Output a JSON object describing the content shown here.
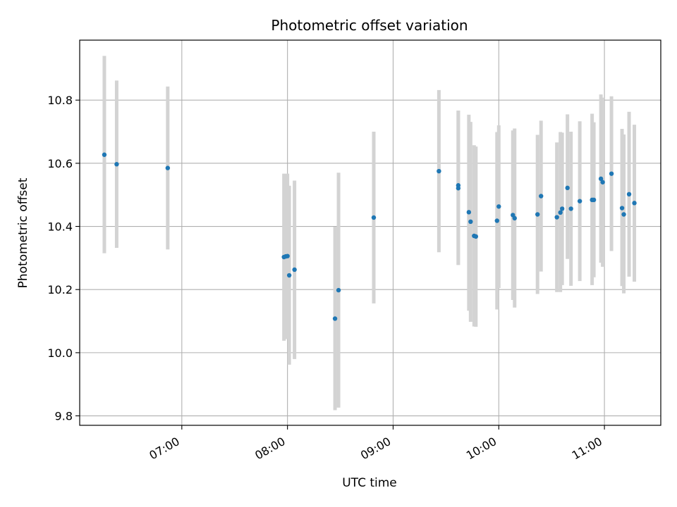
{
  "chart_data": {
    "type": "scatter",
    "title": "Photometric offset variation",
    "xlabel": "UTC time",
    "ylabel": "Photometric offset",
    "xlim": [
      "06:02",
      "11:32"
    ],
    "ylim": [
      9.77,
      10.99
    ],
    "x_ticks": [
      "07:00",
      "08:00",
      "09:00",
      "10:00",
      "11:00"
    ],
    "y_ticks": [
      "9.8",
      "10.0",
      "10.2",
      "10.4",
      "10.6",
      "10.8"
    ],
    "grid": true,
    "point_color": "#1f77b4",
    "errorbar_color": "#d3d3d3",
    "points": [
      {
        "t": "06:16",
        "y": 10.627,
        "lo": 10.315,
        "hi": 10.94
      },
      {
        "t": "06:23",
        "y": 10.597,
        "lo": 10.332,
        "hi": 10.862
      },
      {
        "t": "06:52",
        "y": 10.585,
        "lo": 10.327,
        "hi": 10.843
      },
      {
        "t": "07:58",
        "y": 10.303,
        "lo": 10.038,
        "hi": 10.567
      },
      {
        "t": "07:59",
        "y": 10.305,
        "lo": 10.043,
        "hi": 10.566
      },
      {
        "t": "08:00",
        "y": 10.306,
        "lo": 10.045,
        "hi": 10.567
      },
      {
        "t": "08:01",
        "y": 10.245,
        "lo": 9.962,
        "hi": 10.529
      },
      {
        "t": "08:04",
        "y": 10.263,
        "lo": 9.98,
        "hi": 10.545
      },
      {
        "t": "08:27",
        "y": 10.108,
        "lo": 9.818,
        "hi": 10.399
      },
      {
        "t": "08:29",
        "y": 10.198,
        "lo": 9.826,
        "hi": 10.57
      },
      {
        "t": "08:49",
        "y": 10.428,
        "lo": 10.156,
        "hi": 10.7
      },
      {
        "t": "09:26",
        "y": 10.575,
        "lo": 10.318,
        "hi": 10.832
      },
      {
        "t": "09:37",
        "y": 10.53,
        "lo": 10.278,
        "hi": 10.767
      },
      {
        "t": "09:37",
        "y": 10.521,
        "lo": 10.278,
        "hi": 10.767
      },
      {
        "t": "09:43",
        "y": 10.445,
        "lo": 10.133,
        "hi": 10.754
      },
      {
        "t": "09:44",
        "y": 10.415,
        "lo": 10.098,
        "hi": 10.731
      },
      {
        "t": "09:46",
        "y": 10.37,
        "lo": 10.083,
        "hi": 10.657
      },
      {
        "t": "09:47",
        "y": 10.368,
        "lo": 10.082,
        "hi": 10.653
      },
      {
        "t": "09:59",
        "y": 10.418,
        "lo": 10.137,
        "hi": 10.699
      },
      {
        "t": "10:00",
        "y": 10.463,
        "lo": 10.205,
        "hi": 10.72
      },
      {
        "t": "10:08",
        "y": 10.436,
        "lo": 10.167,
        "hi": 10.704
      },
      {
        "t": "10:09",
        "y": 10.426,
        "lo": 10.143,
        "hi": 10.71
      },
      {
        "t": "10:22",
        "y": 10.438,
        "lo": 10.186,
        "hi": 10.69
      },
      {
        "t": "10:24",
        "y": 10.496,
        "lo": 10.257,
        "hi": 10.735
      },
      {
        "t": "10:33",
        "y": 10.429,
        "lo": 10.192,
        "hi": 10.666
      },
      {
        "t": "10:35",
        "y": 10.444,
        "lo": 10.192,
        "hi": 10.699
      },
      {
        "t": "10:36",
        "y": 10.456,
        "lo": 10.214,
        "hi": 10.697
      },
      {
        "t": "10:39",
        "y": 10.522,
        "lo": 10.297,
        "hi": 10.755
      },
      {
        "t": "10:41",
        "y": 10.456,
        "lo": 10.212,
        "hi": 10.7
      },
      {
        "t": "10:46",
        "y": 10.48,
        "lo": 10.227,
        "hi": 10.733
      },
      {
        "t": "10:53",
        "y": 10.484,
        "lo": 10.214,
        "hi": 10.757
      },
      {
        "t": "10:54",
        "y": 10.484,
        "lo": 10.239,
        "hi": 10.73
      },
      {
        "t": "10:58",
        "y": 10.551,
        "lo": 10.285,
        "hi": 10.818
      },
      {
        "t": "10:59",
        "y": 10.54,
        "lo": 10.272,
        "hi": 10.808
      },
      {
        "t": "11:04",
        "y": 10.567,
        "lo": 10.322,
        "hi": 10.812
      },
      {
        "t": "11:10",
        "y": 10.458,
        "lo": 10.211,
        "hi": 10.709
      },
      {
        "t": "11:11",
        "y": 10.438,
        "lo": 10.188,
        "hi": 10.691
      },
      {
        "t": "11:14",
        "y": 10.502,
        "lo": 10.241,
        "hi": 10.763
      },
      {
        "t": "11:17",
        "y": 10.474,
        "lo": 10.225,
        "hi": 10.722
      }
    ]
  }
}
